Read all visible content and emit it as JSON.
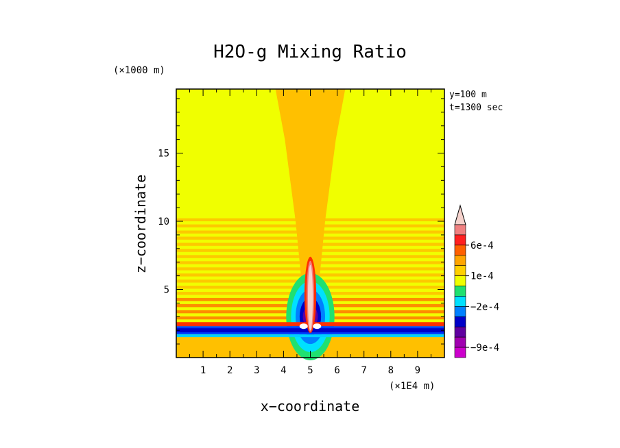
{
  "chart_data": {
    "type": "heatmap",
    "title": "H2O-g Mixing Ratio",
    "xlabel": "x−coordinate",
    "ylabel": "z−coordinate",
    "x_unit": "(×1E4 m)",
    "y_unit": "(×1000 m)",
    "annotations": [
      "y=100 m",
      "t=1300 sec"
    ],
    "xlim": [
      0,
      10
    ],
    "ylim": [
      0,
      19.7
    ],
    "x_ticks": [
      "1",
      "2",
      "3",
      "4",
      "5",
      "6",
      "7",
      "8",
      "9"
    ],
    "y_ticks": [
      "5",
      "10",
      "15"
    ],
    "colorbar": {
      "levels_top_to_bottom": [
        "extend-max",
        "level-1",
        "level-2",
        "level-3",
        "level-4",
        "level-5",
        "level-6",
        "level-7",
        "level-8",
        "level-9",
        "level-10",
        "level-11",
        "level-12",
        "level-13"
      ],
      "colors_top_to_bottom": [
        "#f5d2cc",
        "#f08080",
        "#ff2020",
        "#ff6000",
        "#ffa500",
        "#ffd000",
        "#f0ff00",
        "#20e070",
        "#00e0ff",
        "#0080ff",
        "#0000c8",
        "#6000a0",
        "#a000b0",
        "#cc00cc"
      ],
      "labels": [
        {
          "text": "6e-4",
          "level_index": 2
        },
        {
          "text": "1e-4",
          "level_index": 5
        },
        {
          "text": "−2e-4",
          "level_index": 8
        },
        {
          "text": "−9e-4",
          "level_index": 12
        }
      ]
    },
    "field_colors": {
      "background": "#f0ff00",
      "plume": "#ffc000",
      "band_orange": "#ff8000",
      "band_red": "#ff3000",
      "band_blue": "#0040ff",
      "band_cyan": "#00d0ff",
      "core_light": "#f5d2cc",
      "core_pink": "#f08080"
    }
  }
}
